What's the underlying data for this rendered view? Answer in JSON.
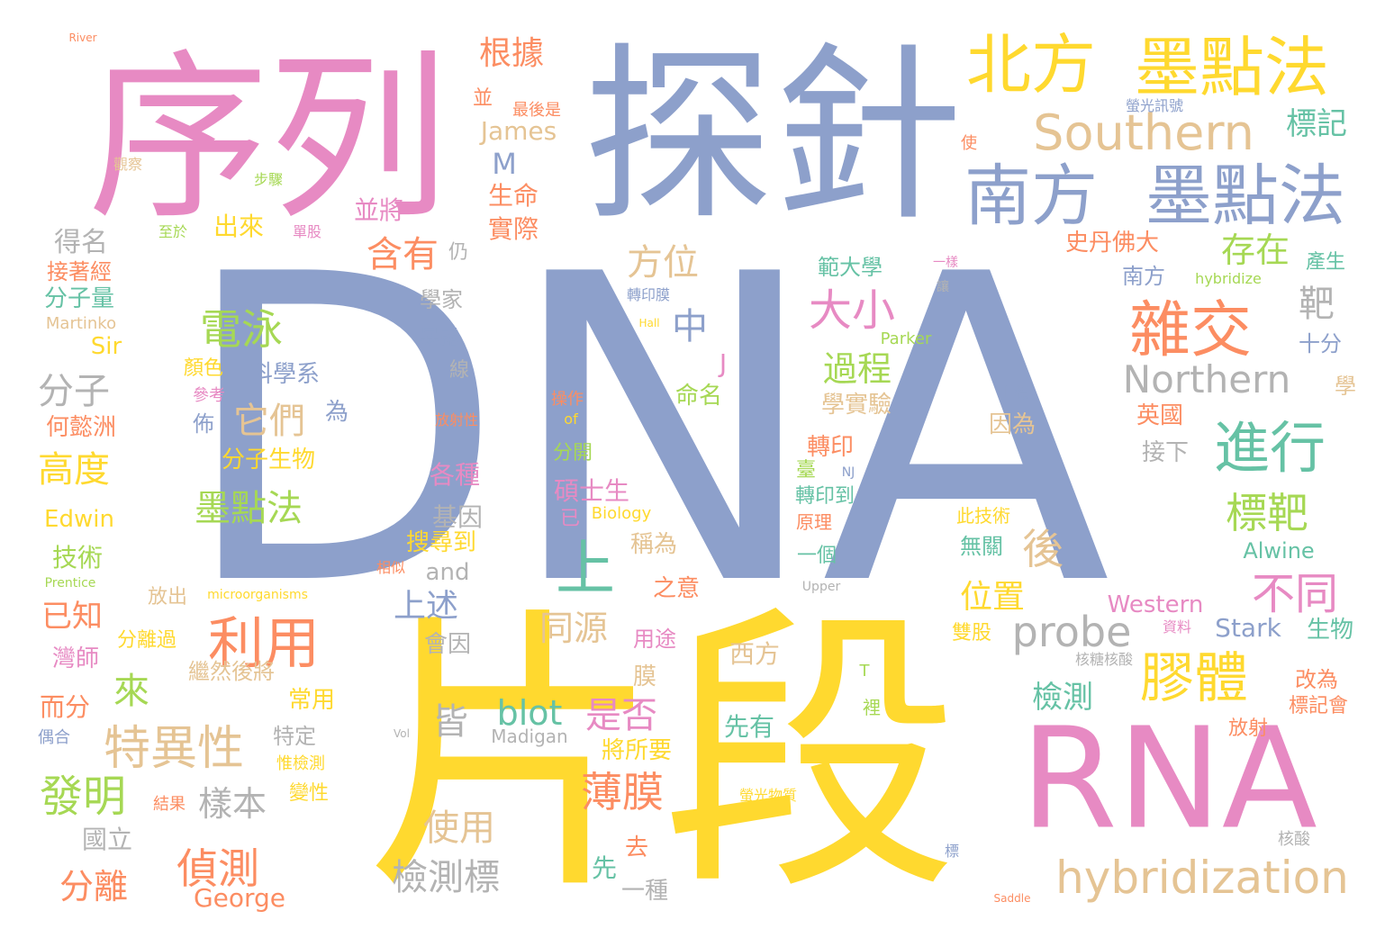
{
  "palette": {
    "blue": "#8da0cb",
    "pink": "#e78ac3",
    "yellow": "#ffd92f",
    "tan": "#e5c494",
    "orange": "#fc8d62",
    "green": "#66c2a5",
    "lime": "#a6d854",
    "gray": "#b3b3b3"
  },
  "words": [
    {
      "t": "DNA"
    },
    {
      "t": "片段"
    },
    {
      "t": "探針"
    },
    {
      "t": "序列"
    },
    {
      "t": "RNA"
    },
    {
      "t": "北方"
    },
    {
      "t": "墨點法"
    },
    {
      "t": "南方"
    },
    {
      "t": "墨點法"
    },
    {
      "t": "Southern"
    },
    {
      "t": "hybridization"
    },
    {
      "t": "雜交"
    },
    {
      "t": "進行"
    },
    {
      "t": "Northern"
    },
    {
      "t": "probe"
    },
    {
      "t": "膠體"
    },
    {
      "t": "利用"
    },
    {
      "t": "特異性"
    },
    {
      "t": "電泳"
    },
    {
      "t": "偵測"
    },
    {
      "t": "根據"
    },
    {
      "t": "標記"
    },
    {
      "t": "靶"
    },
    {
      "t": "標靶"
    },
    {
      "t": "不同"
    },
    {
      "t": "上"
    },
    {
      "t": "後"
    },
    {
      "t": "存在"
    },
    {
      "t": "大小"
    },
    {
      "t": "方位"
    },
    {
      "t": "含有"
    },
    {
      "t": "分子"
    },
    {
      "t": "高度"
    },
    {
      "t": "發明"
    },
    {
      "t": "墨點法"
    },
    {
      "t": "它們"
    },
    {
      "t": "過程"
    },
    {
      "t": "薄膜"
    },
    {
      "t": "是否"
    },
    {
      "t": "blot"
    },
    {
      "t": "使用"
    },
    {
      "t": "檢測標"
    },
    {
      "t": "分離"
    },
    {
      "t": "樣本"
    },
    {
      "t": "來"
    },
    {
      "t": "皆"
    },
    {
      "t": "同源"
    },
    {
      "t": "位置"
    },
    {
      "t": "檢測"
    },
    {
      "t": "上述"
    },
    {
      "t": "中"
    },
    {
      "t": "M"
    },
    {
      "t": "James"
    },
    {
      "t": "生命"
    },
    {
      "t": "實際"
    },
    {
      "t": "出來"
    },
    {
      "t": "並將"
    },
    {
      "t": "得名"
    },
    {
      "t": "接著經"
    },
    {
      "t": "分子量"
    },
    {
      "t": "Martinko"
    },
    {
      "t": "Sir"
    },
    {
      "t": "顏色"
    },
    {
      "t": "參考"
    },
    {
      "t": "何懿洲"
    },
    {
      "t": "Edwin"
    },
    {
      "t": "技術"
    },
    {
      "t": "Prentice"
    },
    {
      "t": "已知"
    },
    {
      "t": "灣師"
    },
    {
      "t": "而分"
    },
    {
      "t": "偶合"
    },
    {
      "t": "結果"
    },
    {
      "t": "國立"
    },
    {
      "t": "George"
    },
    {
      "t": "科學系"
    },
    {
      "t": "佈"
    },
    {
      "t": "分子生物"
    },
    {
      "t": "為"
    },
    {
      "t": "學家"
    },
    {
      "t": "暴露"
    },
    {
      "t": "線"
    },
    {
      "t": "仍"
    },
    {
      "t": "各種"
    },
    {
      "t": "基因"
    },
    {
      "t": "搜尋到"
    },
    {
      "t": "and"
    },
    {
      "t": "會因"
    },
    {
      "t": "碩士生"
    },
    {
      "t": "已"
    },
    {
      "t": "Biology"
    },
    {
      "t": "稱為"
    },
    {
      "t": "之意"
    },
    {
      "t": "用途"
    },
    {
      "t": "膜"
    },
    {
      "t": "西方"
    },
    {
      "t": "先有"
    },
    {
      "t": "將所要"
    },
    {
      "t": "先"
    },
    {
      "t": "去"
    },
    {
      "t": "一種"
    },
    {
      "t": "River"
    },
    {
      "t": "步驟"
    },
    {
      "t": "觀察"
    },
    {
      "t": "至於"
    },
    {
      "t": "單股"
    },
    {
      "t": "並"
    },
    {
      "t": "最後是"
    },
    {
      "t": "螢光訊號"
    },
    {
      "t": "使"
    },
    {
      "t": "史丹佛大"
    },
    {
      "t": "產生"
    },
    {
      "t": "hybridize"
    },
    {
      "t": "南方"
    },
    {
      "t": "一樣"
    },
    {
      "t": "讓"
    },
    {
      "t": "範大學"
    },
    {
      "t": "轉印膜"
    },
    {
      "t": "Hall"
    },
    {
      "t": "Parker"
    },
    {
      "t": "十分"
    },
    {
      "t": "學"
    },
    {
      "t": "J"
    },
    {
      "t": "命名"
    },
    {
      "t": "學實驗"
    },
    {
      "t": "上標"
    },
    {
      "t": "因為"
    },
    {
      "t": "英國"
    },
    {
      "t": "接下"
    },
    {
      "t": "放射性"
    },
    {
      "t": "of"
    },
    {
      "t": "操作"
    },
    {
      "t": "分開"
    },
    {
      "t": "轉印"
    },
    {
      "t": "臺"
    },
    {
      "t": "NJ"
    },
    {
      "t": "轉印到"
    },
    {
      "t": "原理"
    },
    {
      "t": "此技術"
    },
    {
      "t": "無關"
    },
    {
      "t": "Alwine"
    },
    {
      "t": "一個"
    },
    {
      "t": "Upper"
    },
    {
      "t": "Western"
    },
    {
      "t": "Stark"
    },
    {
      "t": "生物"
    },
    {
      "t": "資料"
    },
    {
      "t": "雙股"
    },
    {
      "t": "核糖核酸"
    },
    {
      "t": "T"
    },
    {
      "t": "裡"
    },
    {
      "t": "改為"
    },
    {
      "t": "標記會"
    },
    {
      "t": "放射"
    },
    {
      "t": "螢光物質"
    },
    {
      "t": "標"
    },
    {
      "t": "Saddle"
    },
    {
      "t": "核酸"
    },
    {
      "t": "變性"
    },
    {
      "t": "惟檢測"
    },
    {
      "t": "特定"
    },
    {
      "t": "常用"
    },
    {
      "t": "繼然後將"
    },
    {
      "t": "放出"
    },
    {
      "t": "microorganisms"
    },
    {
      "t": "分離過"
    },
    {
      "t": "相似"
    },
    {
      "t": "Madigan"
    },
    {
      "t": "Vol"
    }
  ]
}
